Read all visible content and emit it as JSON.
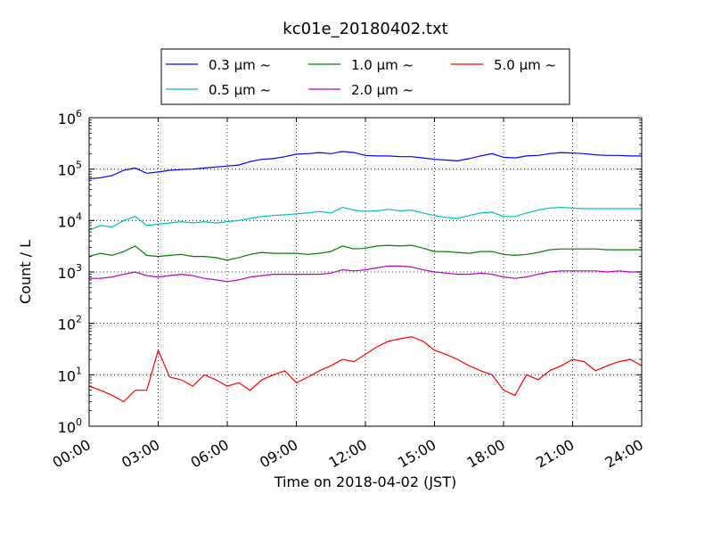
{
  "chart_data": {
    "type": "line",
    "title": "kc01e_20180402.txt",
    "xlabel": "Time on 2018-04-02 (JST)",
    "ylabel": "Count / L",
    "yscale": "log",
    "ylim": [
      1,
      1000000
    ],
    "xlim": [
      "00:00",
      "24:00"
    ],
    "grid": true,
    "legend": {
      "placement": "top",
      "columns": 3
    },
    "x_ticks": [
      "00:00",
      "03:00",
      "06:00",
      "09:00",
      "12:00",
      "15:00",
      "18:00",
      "21:00",
      "24:00"
    ],
    "y_ticks": [
      {
        "base": "10",
        "exp": "0"
      },
      {
        "base": "10",
        "exp": "1"
      },
      {
        "base": "10",
        "exp": "2"
      },
      {
        "base": "10",
        "exp": "3"
      },
      {
        "base": "10",
        "exp": "4"
      },
      {
        "base": "10",
        "exp": "5"
      },
      {
        "base": "10",
        "exp": "6"
      }
    ],
    "x": [
      "00:00",
      "00:30",
      "01:00",
      "01:30",
      "02:00",
      "02:30",
      "03:00",
      "03:30",
      "04:00",
      "04:30",
      "05:00",
      "05:30",
      "06:00",
      "06:30",
      "07:00",
      "07:30",
      "08:00",
      "08:30",
      "09:00",
      "09:30",
      "10:00",
      "10:30",
      "11:00",
      "11:30",
      "12:00",
      "12:30",
      "13:00",
      "13:30",
      "14:00",
      "14:30",
      "15:00",
      "15:30",
      "16:00",
      "16:30",
      "17:00",
      "17:30",
      "18:00",
      "18:30",
      "19:00",
      "19:30",
      "20:00",
      "20:30",
      "21:00",
      "21:30",
      "22:00",
      "22:30",
      "23:00",
      "23:30",
      "24:00"
    ],
    "series": [
      {
        "name": "0.3 μm ~",
        "color": "#0000ff",
        "values": [
          65000,
          68000,
          75000,
          95000,
          105000,
          83000,
          88000,
          95000,
          98000,
          100000,
          105000,
          110000,
          115000,
          120000,
          140000,
          155000,
          160000,
          175000,
          195000,
          200000,
          210000,
          200000,
          220000,
          210000,
          185000,
          180000,
          180000,
          175000,
          175000,
          165000,
          155000,
          150000,
          145000,
          160000,
          180000,
          200000,
          170000,
          165000,
          180000,
          185000,
          200000,
          210000,
          205000,
          200000,
          190000,
          185000,
          185000,
          180000,
          180000
        ]
      },
      {
        "name": "0.5 μm ~",
        "color": "#00bfbf",
        "values": [
          6500,
          8000,
          7500,
          10000,
          12000,
          8000,
          8500,
          9000,
          9500,
          9000,
          9500,
          9000,
          9500,
          10000,
          11000,
          12000,
          12500,
          13000,
          13500,
          14000,
          15000,
          14000,
          18000,
          16000,
          15000,
          15500,
          16500,
          15500,
          16000,
          14000,
          12500,
          11500,
          11000,
          12500,
          14000,
          14500,
          12000,
          12000,
          14000,
          16000,
          17500,
          18000,
          17500,
          17000,
          17000,
          17000,
          17000,
          17000,
          17000
        ]
      },
      {
        "name": "1.0 μm ~",
        "color": "#008000",
        "values": [
          2000,
          2300,
          2100,
          2500,
          3200,
          2100,
          2000,
          2100,
          2200,
          2000,
          2000,
          1900,
          1700,
          1900,
          2200,
          2400,
          2300,
          2300,
          2300,
          2200,
          2300,
          2500,
          3200,
          2800,
          2900,
          3200,
          3300,
          3200,
          3300,
          2900,
          2500,
          2500,
          2400,
          2300,
          2500,
          2500,
          2200,
          2100,
          2200,
          2400,
          2700,
          2800,
          2800,
          2800,
          2800,
          2700,
          2700,
          2700,
          2700
        ]
      },
      {
        "name": "2.0 μm ~",
        "color": "#bf00bf",
        "values": [
          750,
          750,
          800,
          900,
          1000,
          850,
          800,
          850,
          900,
          850,
          750,
          700,
          650,
          700,
          800,
          850,
          900,
          900,
          900,
          900,
          900,
          950,
          1100,
          1050,
          1100,
          1200,
          1300,
          1300,
          1250,
          1100,
          1000,
          950,
          900,
          900,
          950,
          900,
          800,
          750,
          800,
          900,
          1000,
          1050,
          1050,
          1050,
          1050,
          1000,
          1050,
          1000,
          1000
        ]
      },
      {
        "name": "5.0 μm ~",
        "color": "#ff0000",
        "values": [
          6,
          5,
          4,
          3,
          5,
          5,
          30,
          9,
          8,
          6,
          10,
          8,
          6,
          7,
          5,
          8,
          10,
          12,
          7,
          9,
          12,
          15,
          20,
          18,
          25,
          35,
          45,
          50,
          55,
          45,
          30,
          25,
          20,
          15,
          12,
          10,
          5,
          4,
          10,
          8,
          12,
          15,
          20,
          18,
          12,
          15,
          18,
          20,
          15
        ]
      }
    ]
  }
}
